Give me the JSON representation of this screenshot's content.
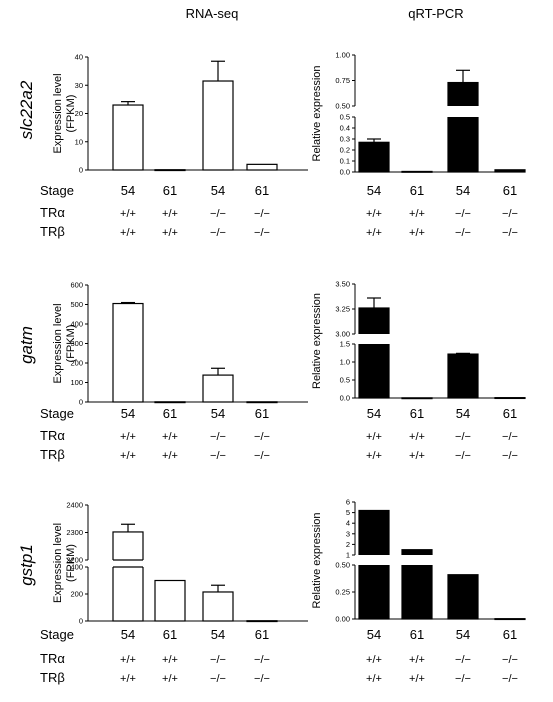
{
  "figure": {
    "column_titles": [
      "RNA-seq",
      "qRT-PCR"
    ],
    "row_genes": [
      "slc22a2",
      "gatm",
      "gstp1"
    ],
    "stage_label": "Stage",
    "tra_label": "TRα",
    "trb_label": "TRβ",
    "stages": [
      "54",
      "61",
      "54",
      "61"
    ],
    "genotypes": [
      "+/+",
      "+/+",
      "−/−",
      "−/−"
    ],
    "rnaseq_ylabel_1": "Expression level",
    "rnaseq_ylabel_2": "(FPKM)",
    "qpcr_ylabel": "Relative expression"
  },
  "chart_data": [
    {
      "type": "bar",
      "panel": "slc22a2 RNA-seq",
      "gene": "slc22a2",
      "categories": [
        "54 +/+ +/+",
        "61 +/+ +/+",
        "54 −/− −/−",
        "61 −/− −/−"
      ],
      "values": [
        23,
        0.1,
        31.5,
        2
      ],
      "errors": [
        1.2,
        0,
        7,
        0
      ],
      "ylabel": "Expression level (FPKM)",
      "ylim": [
        0,
        40
      ],
      "yticks": [
        "0",
        "10",
        "20",
        "30",
        "40"
      ],
      "fill": "#ffffff"
    },
    {
      "type": "bar",
      "panel": "slc22a2 qRT-PCR",
      "gene": "slc22a2",
      "categories": [
        "54 +/+ +/+",
        "61 +/+ +/+",
        "54 −/− −/−",
        "61 −/− −/−"
      ],
      "values": [
        0.27,
        0.005,
        0.73,
        0.02
      ],
      "errors": [
        0.03,
        0,
        0.12,
        0
      ],
      "ylabel": "Relative expression",
      "ylim": [
        0,
        1.0
      ],
      "axis_break": [
        0.5,
        0.5
      ],
      "yticks_low": [
        "0.0",
        "0.1",
        "0.2",
        "0.3",
        "0.4",
        "0.5"
      ],
      "yticks_high": [
        "0.50",
        "0.75",
        "1.00"
      ],
      "fill": "#000000"
    },
    {
      "type": "bar",
      "panel": "gatm RNA-seq",
      "gene": "gatm",
      "categories": [
        "54 +/+ +/+",
        "61 +/+ +/+",
        "54 −/− −/−",
        "61 −/− −/−"
      ],
      "values": [
        505,
        1,
        138,
        1
      ],
      "errors": [
        5,
        0,
        35,
        0
      ],
      "ylabel": "Expression level (FPKM)",
      "ylim": [
        0,
        600
      ],
      "yticks": [
        "0",
        "100",
        "200",
        "300",
        "400",
        "500",
        "600"
      ],
      "fill": "#ffffff"
    },
    {
      "type": "bar",
      "panel": "gatm qRT-PCR",
      "gene": "gatm",
      "categories": [
        "54 +/+ +/+",
        "61 +/+ +/+",
        "54 −/− −/−",
        "61 −/− −/−"
      ],
      "values": [
        3.26,
        0.005,
        1.22,
        0.01
      ],
      "errors": [
        0.1,
        0,
        0.02,
        0
      ],
      "ylabel": "Relative expression",
      "ylim": [
        0,
        3.5
      ],
      "axis_break": [
        1.5,
        3.0
      ],
      "yticks_low": [
        "0.0",
        "0.5",
        "1.0",
        "1.5"
      ],
      "yticks_high": [
        "3.00",
        "3.25",
        "3.50"
      ],
      "fill": "#000000"
    },
    {
      "type": "bar",
      "panel": "gstp1 RNA-seq",
      "gene": "gstp1",
      "categories": [
        "54 +/+ +/+",
        "61 +/+ +/+",
        "54 −/− −/−",
        "61 −/− −/−"
      ],
      "values": [
        2302,
        300,
        215,
        2
      ],
      "errors": [
        28,
        0,
        50,
        0
      ],
      "ylabel": "Expression level (FPKM)",
      "ylim": [
        0,
        2400
      ],
      "axis_break": [
        400,
        2200
      ],
      "yticks_low": [
        "0",
        "200",
        "400"
      ],
      "yticks_high": [
        "2200",
        "2300",
        "2400"
      ],
      "fill": "#ffffff"
    },
    {
      "type": "bar",
      "panel": "gstp1 qRT-PCR",
      "gene": "gstp1",
      "categories": [
        "54 +/+ +/+",
        "61 +/+ +/+",
        "54 −/− −/−",
        "61 −/− −/−"
      ],
      "values": [
        5.2,
        1.5,
        0.41,
        0.003
      ],
      "errors": [
        0,
        0,
        0,
        0
      ],
      "ylabel": "Relative expression",
      "ylim": [
        0,
        6
      ],
      "axis_break": [
        0.5,
        1
      ],
      "yticks_low": [
        "0.00",
        "0.25",
        "0.50"
      ],
      "yticks_high": [
        "1",
        "2",
        "3",
        "4",
        "5",
        "6"
      ],
      "fill": "#000000"
    }
  ]
}
